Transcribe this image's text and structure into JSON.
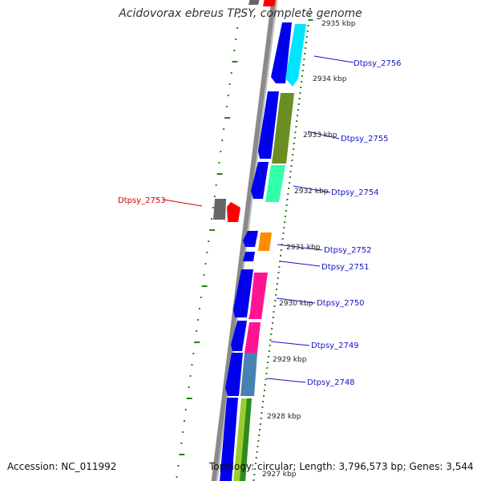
{
  "title": "Acidovorax ebreus TPSY, complete genome",
  "accession": "Accession: NC_011992",
  "topology": "Topology: circular; Length: 3,796,573 bp; Genes: 3,544",
  "colors": {
    "backbone": "#808080",
    "scale_ticks": "#2e7d1e",
    "gene_label": "#1414c8",
    "highlight_label": "#d40000",
    "strand_gene": "#0000ee"
  },
  "scale_labels": [
    {
      "text": "2935 kbp"
    },
    {
      "text": "2934 kbp"
    },
    {
      "text": "2933 kbp"
    },
    {
      "text": "2932 kbp"
    },
    {
      "text": "2931 kbp"
    },
    {
      "text": "2930 kbp"
    },
    {
      "text": "2929 kbp"
    },
    {
      "text": "2928 kbp"
    },
    {
      "text": "2927 kbp"
    }
  ],
  "genes": [
    {
      "label": "Dtpsy_2756",
      "color": "#00e5ff"
    },
    {
      "label": "Dtpsy_2755",
      "color": "#6b8e23"
    },
    {
      "label": "Dtpsy_2754",
      "color": "#33ffaa"
    },
    {
      "label": "Dtpsy_2753",
      "color": "#ff0000"
    },
    {
      "label": "Dtpsy_2752",
      "color": "#ff8c00"
    },
    {
      "label": "Dtpsy_2751",
      "color": "#0000ee"
    },
    {
      "label": "Dtpsy_2750",
      "color": "#ff1493"
    },
    {
      "label": "Dtpsy_2749",
      "color": "#ff1493"
    },
    {
      "label": "Dtpsy_2748",
      "color": "#4682b4"
    }
  ]
}
